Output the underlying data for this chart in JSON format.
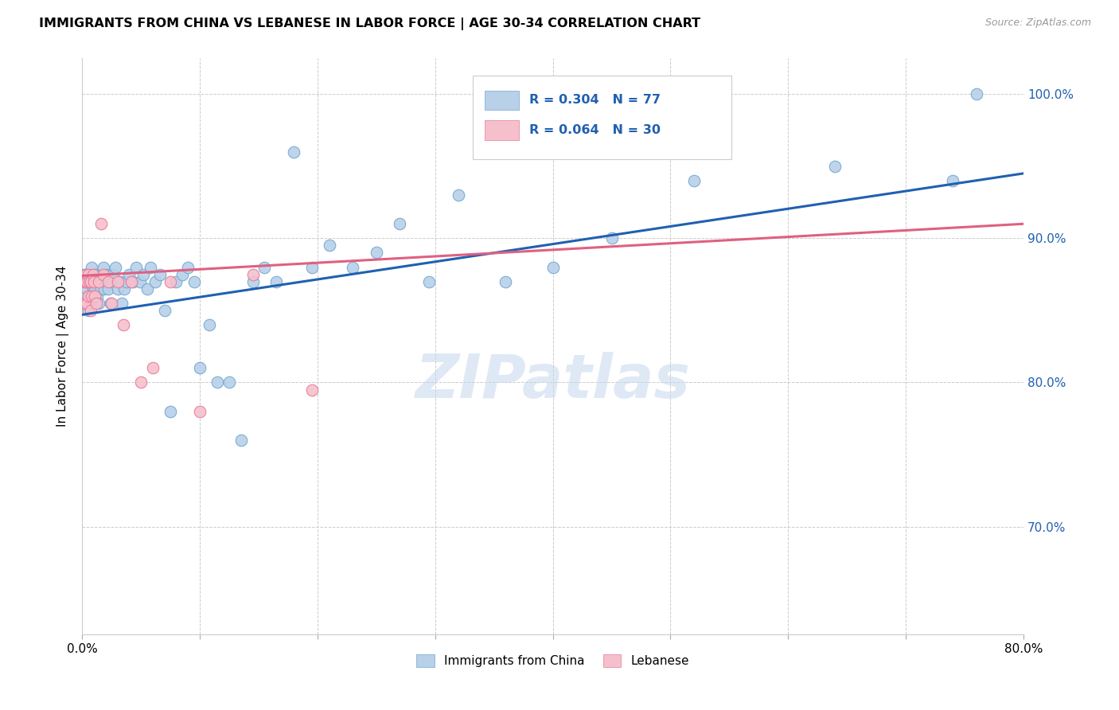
{
  "title": "IMMIGRANTS FROM CHINA VS LEBANESE IN LABOR FORCE | AGE 30-34 CORRELATION CHART",
  "source": "Source: ZipAtlas.com",
  "ylabel": "In Labor Force | Age 30-34",
  "x_min": 0.0,
  "x_max": 0.8,
  "y_min": 0.625,
  "y_max": 1.025,
  "x_ticks": [
    0.0,
    0.1,
    0.2,
    0.3,
    0.4,
    0.5,
    0.6,
    0.7,
    0.8
  ],
  "x_tick_labels": [
    "0.0%",
    "",
    "",
    "",
    "",
    "",
    "",
    "",
    "80.0%"
  ],
  "y_ticks": [
    0.7,
    0.8,
    0.9,
    1.0
  ],
  "y_tick_labels": [
    "70.0%",
    "80.0%",
    "90.0%",
    "100.0%"
  ],
  "china_color": "#b8d0e8",
  "china_edge_color": "#6fa8d0",
  "lebanese_color": "#f5c0cc",
  "lebanese_edge_color": "#e87898",
  "line_china_color": "#2060b0",
  "line_lebanese_color": "#e06080",
  "R_china": 0.304,
  "N_china": 77,
  "R_lebanese": 0.064,
  "N_lebanese": 30,
  "watermark": "ZIPatlas",
  "legend_labels": [
    "Immigrants from China",
    "Lebanese"
  ],
  "china_points_x": [
    0.001,
    0.002,
    0.003,
    0.003,
    0.004,
    0.004,
    0.005,
    0.005,
    0.006,
    0.006,
    0.007,
    0.007,
    0.008,
    0.008,
    0.009,
    0.01,
    0.01,
    0.011,
    0.011,
    0.012,
    0.013,
    0.014,
    0.015,
    0.016,
    0.017,
    0.018,
    0.019,
    0.02,
    0.021,
    0.022,
    0.024,
    0.025,
    0.026,
    0.028,
    0.03,
    0.032,
    0.034,
    0.036,
    0.038,
    0.04,
    0.043,
    0.046,
    0.049,
    0.052,
    0.055,
    0.058,
    0.062,
    0.066,
    0.07,
    0.075,
    0.08,
    0.085,
    0.09,
    0.095,
    0.1,
    0.108,
    0.115,
    0.125,
    0.135,
    0.145,
    0.155,
    0.165,
    0.18,
    0.195,
    0.21,
    0.23,
    0.25,
    0.27,
    0.295,
    0.32,
    0.36,
    0.4,
    0.45,
    0.52,
    0.64,
    0.74,
    0.76
  ],
  "china_points_y": [
    0.875,
    0.86,
    0.875,
    0.87,
    0.855,
    0.865,
    0.85,
    0.87,
    0.86,
    0.875,
    0.855,
    0.87,
    0.86,
    0.88,
    0.865,
    0.875,
    0.855,
    0.87,
    0.865,
    0.875,
    0.86,
    0.855,
    0.87,
    0.865,
    0.875,
    0.88,
    0.865,
    0.87,
    0.875,
    0.865,
    0.855,
    0.87,
    0.875,
    0.88,
    0.865,
    0.87,
    0.855,
    0.865,
    0.87,
    0.875,
    0.87,
    0.88,
    0.87,
    0.875,
    0.865,
    0.88,
    0.87,
    0.875,
    0.85,
    0.78,
    0.87,
    0.875,
    0.88,
    0.87,
    0.81,
    0.84,
    0.8,
    0.8,
    0.76,
    0.87,
    0.88,
    0.87,
    0.96,
    0.88,
    0.895,
    0.88,
    0.89,
    0.91,
    0.87,
    0.93,
    0.87,
    0.88,
    0.9,
    0.94,
    0.95,
    0.94,
    1.0
  ],
  "lebanese_points_x": [
    0.001,
    0.002,
    0.003,
    0.003,
    0.004,
    0.004,
    0.005,
    0.005,
    0.006,
    0.007,
    0.007,
    0.008,
    0.009,
    0.01,
    0.011,
    0.012,
    0.014,
    0.016,
    0.018,
    0.022,
    0.025,
    0.03,
    0.035,
    0.042,
    0.05,
    0.06,
    0.075,
    0.1,
    0.145,
    0.195
  ],
  "lebanese_points_y": [
    0.87,
    0.855,
    0.875,
    0.87,
    0.855,
    0.87,
    0.86,
    0.875,
    0.87,
    0.85,
    0.87,
    0.86,
    0.875,
    0.87,
    0.86,
    0.855,
    0.87,
    0.91,
    0.875,
    0.87,
    0.855,
    0.87,
    0.84,
    0.87,
    0.8,
    0.81,
    0.87,
    0.78,
    0.875,
    0.795
  ],
  "china_line_x0": 0.0,
  "china_line_x1": 0.8,
  "china_line_y0": 0.847,
  "china_line_y1": 0.945,
  "leb_line_x0": 0.0,
  "leb_line_x1": 0.8,
  "leb_line_y0": 0.874,
  "leb_line_y1": 0.91
}
